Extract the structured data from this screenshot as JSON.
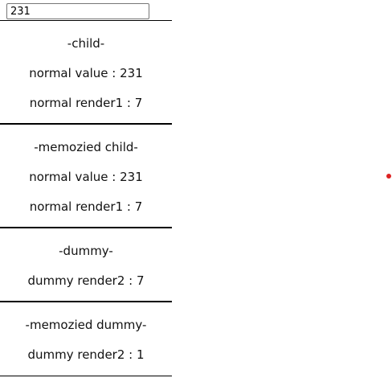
{
  "input": {
    "value": "231"
  },
  "sections": [
    {
      "title": "-child-",
      "lines": [
        "normal value : 231",
        "normal render1 : 7"
      ]
    },
    {
      "title": "-memozied child-",
      "lines": [
        "normal value : 231",
        "normal render1 : 7"
      ]
    },
    {
      "title": "-dummy-",
      "lines": [
        "dummy render2 : 7"
      ]
    },
    {
      "title": "-memozied dummy-",
      "lines": [
        "dummy render2 : 1"
      ]
    }
  ],
  "colors": {
    "indicator_dot": "#dd2222",
    "divider": "#000000"
  }
}
